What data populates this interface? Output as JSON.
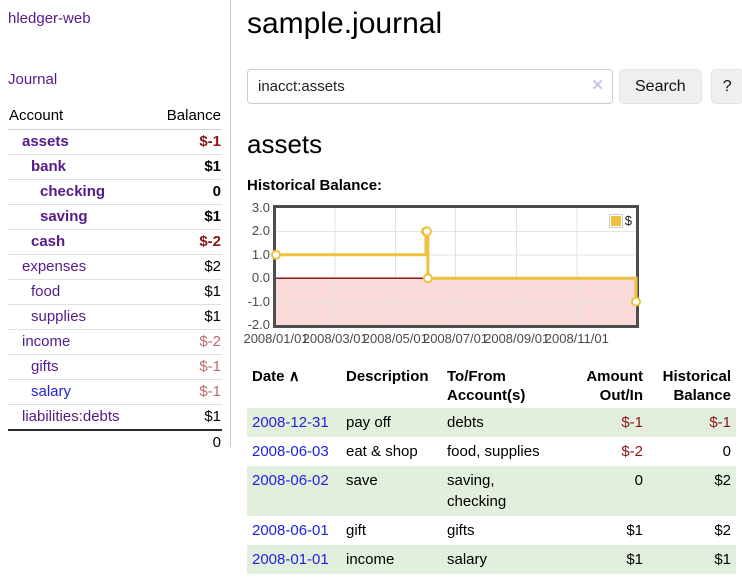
{
  "app_title": "hledger-web",
  "sidebar": {
    "journal_link": "Journal",
    "account_header": "Account",
    "balance_header": "Balance",
    "accounts": [
      {
        "name": "assets",
        "balance": "$-1",
        "depth": 1,
        "bold": true,
        "neg": "strong"
      },
      {
        "name": "bank",
        "balance": "$1",
        "depth": 2,
        "bold": true,
        "neg": null
      },
      {
        "name": "checking",
        "balance": "0",
        "depth": 3,
        "bold": true,
        "neg": null
      },
      {
        "name": "saving",
        "balance": "$1",
        "depth": 3,
        "bold": true,
        "neg": null
      },
      {
        "name": "cash",
        "balance": "$-2",
        "depth": 2,
        "bold": true,
        "neg": "strong"
      },
      {
        "name": "expenses",
        "balance": "$2",
        "depth": 1,
        "bold": false,
        "neg": null
      },
      {
        "name": "food",
        "balance": "$1",
        "depth": 2,
        "bold": false,
        "neg": null
      },
      {
        "name": "supplies",
        "balance": "$1",
        "depth": 2,
        "bold": false,
        "neg": null
      },
      {
        "name": "income",
        "balance": "$-2",
        "depth": 1,
        "bold": false,
        "neg": "soft"
      },
      {
        "name": "gifts",
        "balance": "$-1",
        "depth": 2,
        "bold": false,
        "neg": "soft"
      },
      {
        "name": "salary",
        "balance": "$-1",
        "depth": 2,
        "bold": false,
        "neg": "soft",
        "unvisited": true
      },
      {
        "name": "liabilities:debts",
        "balance": "$1",
        "depth": 1,
        "bold": false,
        "neg": null
      }
    ],
    "total": "0"
  },
  "header": {
    "title": "sample.journal"
  },
  "search": {
    "value": "inacct:assets",
    "clear_icon": "✕",
    "button": "Search",
    "help_button": "?"
  },
  "account_page": {
    "title": "assets",
    "chart_label": "Historical Balance:"
  },
  "chart_data": {
    "type": "line",
    "step": true,
    "title": "Historical Balance",
    "series": [
      {
        "name": "$",
        "color": "#edc240",
        "points": [
          [
            "2008-01-01",
            1
          ],
          [
            "2008-06-01",
            2
          ],
          [
            "2008-06-02",
            2
          ],
          [
            "2008-06-03",
            0
          ],
          [
            "2008-12-31",
            -1
          ]
        ]
      }
    ],
    "x_range": [
      "2008-01-01",
      "2008-12-31"
    ],
    "x_tick_labels": [
      "2008/01/01",
      "2008/03/01",
      "2008/05/01",
      "2008/07/01",
      "2008/09/01",
      "2008/11/01"
    ],
    "y_ticks": [
      3.0,
      2.0,
      1.0,
      0.0,
      -1.0,
      -2.0
    ],
    "ylim": [
      -2,
      3
    ],
    "legend": {
      "label": "$",
      "position": "top-right"
    },
    "grid": true,
    "colors": {
      "line": "#edc240",
      "marker_fill": "#ffffff",
      "negative_region": "#fbdada",
      "zero_line": "#8b1a1a",
      "grid_line": "#e3e3e3",
      "plot_border": "#4c4c4c"
    }
  },
  "register": {
    "headers": {
      "date": "Date",
      "sort_icon": "∧",
      "description": "Description",
      "tofrom_l1": "To/From",
      "tofrom_l2": "Account(s)",
      "amount_l1": "Amount",
      "amount_l2": "Out/In",
      "hist_l1": "Historical",
      "hist_l2": "Balance"
    },
    "rows": [
      {
        "date": "2008-12-31",
        "description": "pay off",
        "accounts": "debts",
        "amount": "$-1",
        "amount_neg": true,
        "balance": "$-1",
        "balance_neg": true,
        "shaded": true
      },
      {
        "date": "2008-06-03",
        "description": "eat & shop",
        "accounts": "food, supplies",
        "amount": "$-2",
        "amount_neg": true,
        "balance": "0",
        "balance_neg": false,
        "shaded": false
      },
      {
        "date": "2008-06-02",
        "description": "save",
        "accounts": "saving, checking",
        "amount": "0",
        "amount_neg": false,
        "balance": "$2",
        "balance_neg": false,
        "shaded": true
      },
      {
        "date": "2008-06-01",
        "description": "gift",
        "accounts": "gifts",
        "amount": "$1",
        "amount_neg": false,
        "balance": "$2",
        "balance_neg": false,
        "shaded": false
      },
      {
        "date": "2008-01-01",
        "description": "income",
        "accounts": "salary",
        "amount": "$1",
        "amount_neg": false,
        "balance": "$1",
        "balance_neg": false,
        "shaded": true
      }
    ]
  },
  "colors": {
    "visited_link_purple": "#551a8b",
    "link_blue": "#2222dd",
    "strong_negative_red": "#8c1616",
    "soft_negative_red": "#ba6c6c",
    "row_stripe_green": "#e3efdd",
    "series_gold": "#edc240"
  }
}
